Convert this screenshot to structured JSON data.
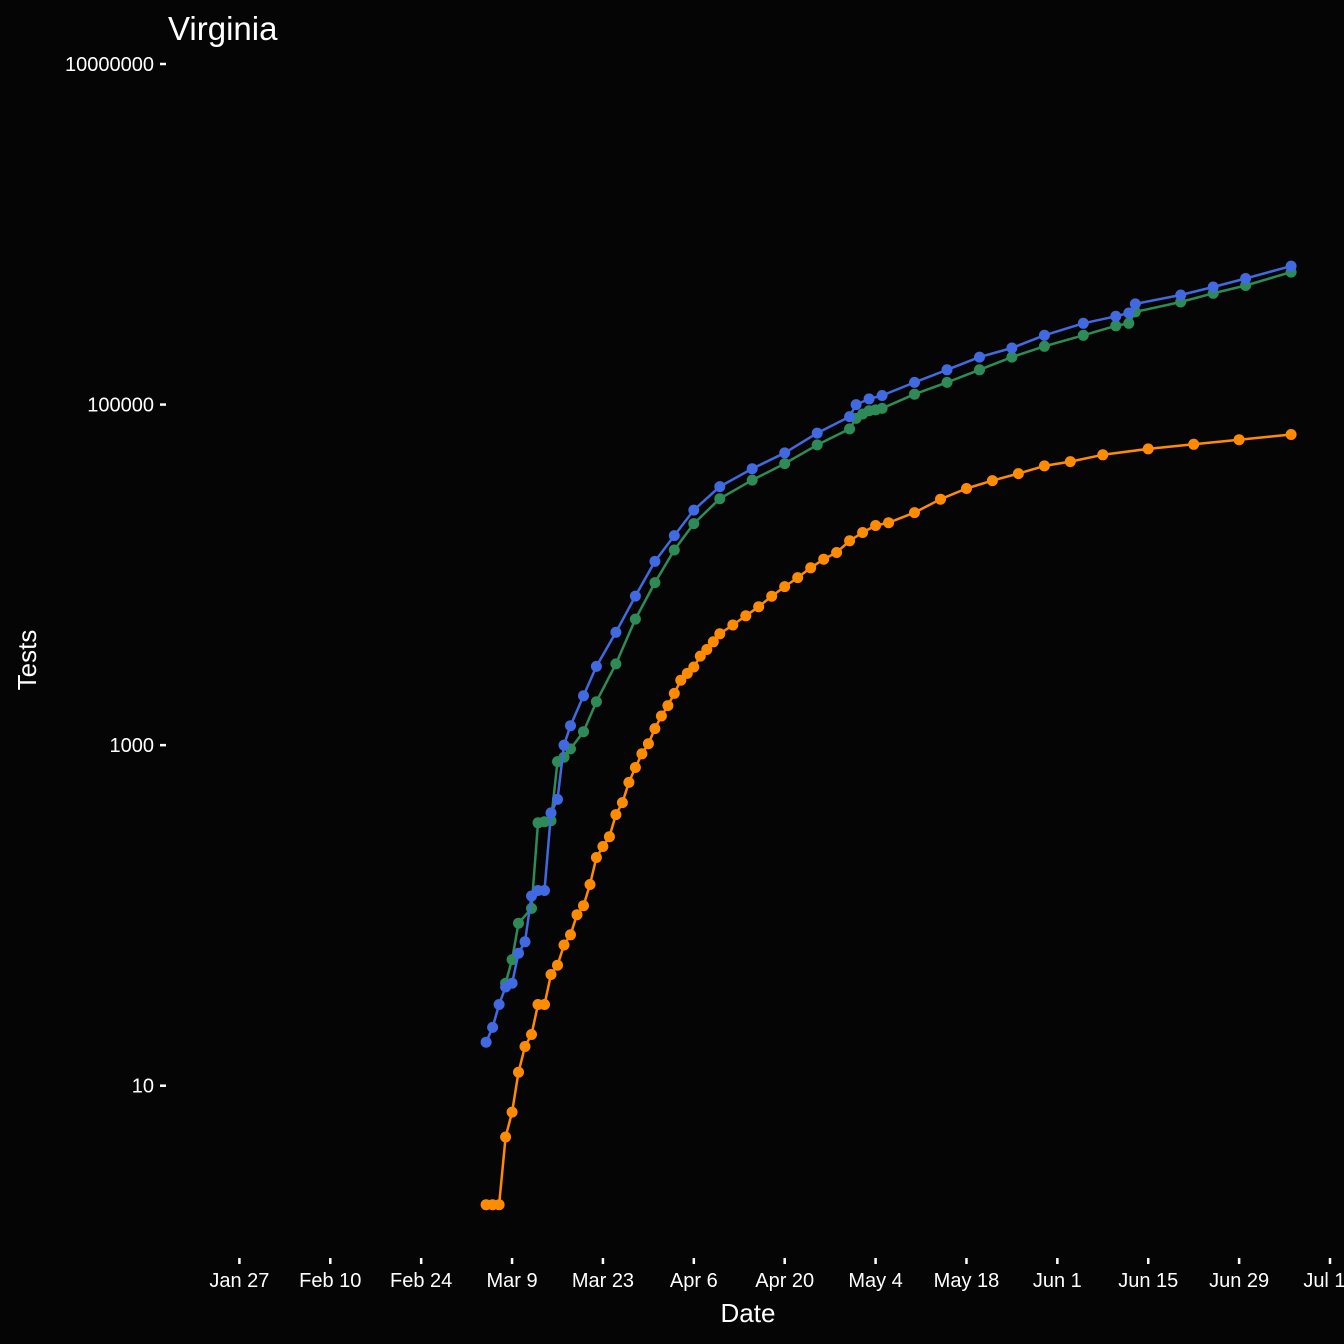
{
  "chart_data": {
    "type": "line",
    "title": "Virginia",
    "xlabel": "Date",
    "ylabel": "Tests",
    "y_scale": "log10",
    "ylim": [
      1,
      10000000
    ],
    "xlim": [
      "2020-01-16",
      "2020-07-13"
    ],
    "y_ticks": [
      {
        "value": 10,
        "label": "10"
      },
      {
        "value": 1000,
        "label": "1000"
      },
      {
        "value": 100000,
        "label": "100000"
      },
      {
        "value": 10000000,
        "label": "10000000"
      }
    ],
    "x_ticks": [
      {
        "date": "2020-01-27",
        "label": "Jan 27"
      },
      {
        "date": "2020-02-10",
        "label": "Feb 10"
      },
      {
        "date": "2020-02-24",
        "label": "Feb 24"
      },
      {
        "date": "2020-03-09",
        "label": "Mar  9"
      },
      {
        "date": "2020-03-23",
        "label": "Mar 23"
      },
      {
        "date": "2020-04-06",
        "label": "Apr  6"
      },
      {
        "date": "2020-04-20",
        "label": "Apr 20"
      },
      {
        "date": "2020-05-04",
        "label": "May  4"
      },
      {
        "date": "2020-05-18",
        "label": "May 18"
      },
      {
        "date": "2020-06-01",
        "label": "Jun  1"
      },
      {
        "date": "2020-06-15",
        "label": "Jun 15"
      },
      {
        "date": "2020-06-29",
        "label": "Jun 29"
      },
      {
        "date": "2020-07-13",
        "label": "Jul 13"
      }
    ],
    "grid": false,
    "legend": "none",
    "series": [
      {
        "color": "#2e8b57",
        "points": [
          [
            "2020-03-08",
            40
          ],
          [
            "2020-03-09",
            55
          ],
          [
            "2020-03-10",
            90
          ],
          [
            "2020-03-12",
            110
          ],
          [
            "2020-03-13",
            350
          ],
          [
            "2020-03-14",
            355
          ],
          [
            "2020-03-15",
            360
          ],
          [
            "2020-03-16",
            800
          ],
          [
            "2020-03-17",
            850
          ],
          [
            "2020-03-18",
            950
          ],
          [
            "2020-03-20",
            1200
          ],
          [
            "2020-03-22",
            1800
          ],
          [
            "2020-03-25",
            3000
          ],
          [
            "2020-03-28",
            5500
          ],
          [
            "2020-03-31",
            9000
          ],
          [
            "2020-04-03",
            14000
          ],
          [
            "2020-04-06",
            20000
          ],
          [
            "2020-04-10",
            28000
          ],
          [
            "2020-04-15",
            36000
          ],
          [
            "2020-04-20",
            45000
          ],
          [
            "2020-04-25",
            58000
          ],
          [
            "2020-04-30",
            72000
          ],
          [
            "2020-05-01",
            83000
          ],
          [
            "2020-05-02",
            88000
          ],
          [
            "2020-05-03",
            92000
          ],
          [
            "2020-05-04",
            93000
          ],
          [
            "2020-05-05",
            95000
          ],
          [
            "2020-05-10",
            115000
          ],
          [
            "2020-05-15",
            135000
          ],
          [
            "2020-05-20",
            160000
          ],
          [
            "2020-05-25",
            190000
          ],
          [
            "2020-05-30",
            220000
          ],
          [
            "2020-06-05",
            255000
          ],
          [
            "2020-06-10",
            290000
          ],
          [
            "2020-06-12",
            300000
          ],
          [
            "2020-06-13",
            350000
          ],
          [
            "2020-06-20",
            400000
          ],
          [
            "2020-06-25",
            450000
          ],
          [
            "2020-06-30",
            500000
          ],
          [
            "2020-07-07",
            600000
          ]
        ]
      },
      {
        "color": "#4169e1",
        "points": [
          [
            "2020-03-05",
            18
          ],
          [
            "2020-03-06",
            22
          ],
          [
            "2020-03-07",
            30
          ],
          [
            "2020-03-08",
            38
          ],
          [
            "2020-03-09",
            40
          ],
          [
            "2020-03-10",
            60
          ],
          [
            "2020-03-11",
            70
          ],
          [
            "2020-03-12",
            130
          ],
          [
            "2020-03-13",
            140
          ],
          [
            "2020-03-14",
            140
          ],
          [
            "2020-03-15",
            400
          ],
          [
            "2020-03-16",
            480
          ],
          [
            "2020-03-17",
            1000
          ],
          [
            "2020-03-18",
            1300
          ],
          [
            "2020-03-20",
            1950
          ],
          [
            "2020-03-22",
            2900
          ],
          [
            "2020-03-25",
            4600
          ],
          [
            "2020-03-28",
            7500
          ],
          [
            "2020-03-31",
            12000
          ],
          [
            "2020-04-03",
            17000
          ],
          [
            "2020-04-06",
            24000
          ],
          [
            "2020-04-10",
            33000
          ],
          [
            "2020-04-15",
            42000
          ],
          [
            "2020-04-20",
            52000
          ],
          [
            "2020-04-25",
            68000
          ],
          [
            "2020-04-30",
            85000
          ],
          [
            "2020-05-01",
            100000
          ],
          [
            "2020-05-03",
            108000
          ],
          [
            "2020-05-05",
            113000
          ],
          [
            "2020-05-10",
            135000
          ],
          [
            "2020-05-15",
            160000
          ],
          [
            "2020-05-20",
            190000
          ],
          [
            "2020-05-25",
            215000
          ],
          [
            "2020-05-30",
            255000
          ],
          [
            "2020-06-05",
            300000
          ],
          [
            "2020-06-10",
            330000
          ],
          [
            "2020-06-12",
            345000
          ],
          [
            "2020-06-13",
            390000
          ],
          [
            "2020-06-20",
            440000
          ],
          [
            "2020-06-25",
            490000
          ],
          [
            "2020-06-30",
            550000
          ],
          [
            "2020-07-07",
            650000
          ]
        ]
      },
      {
        "color": "#ff8c00",
        "points": [
          [
            "2020-03-05",
            2
          ],
          [
            "2020-03-06",
            2
          ],
          [
            "2020-03-07",
            2
          ],
          [
            "2020-03-08",
            5
          ],
          [
            "2020-03-09",
            7
          ],
          [
            "2020-03-10",
            12
          ],
          [
            "2020-03-11",
            17
          ],
          [
            "2020-03-12",
            20
          ],
          [
            "2020-03-13",
            30
          ],
          [
            "2020-03-14",
            30
          ],
          [
            "2020-03-15",
            45
          ],
          [
            "2020-03-16",
            51
          ],
          [
            "2020-03-17",
            67
          ],
          [
            "2020-03-18",
            77
          ],
          [
            "2020-03-19",
            101
          ],
          [
            "2020-03-20",
            114
          ],
          [
            "2020-03-21",
            152
          ],
          [
            "2020-03-22",
            219
          ],
          [
            "2020-03-23",
            254
          ],
          [
            "2020-03-24",
            290
          ],
          [
            "2020-03-25",
            391
          ],
          [
            "2020-03-26",
            460
          ],
          [
            "2020-03-27",
            604
          ],
          [
            "2020-03-28",
            739
          ],
          [
            "2020-03-29",
            890
          ],
          [
            "2020-03-30",
            1020
          ],
          [
            "2020-03-31",
            1250
          ],
          [
            "2020-04-01",
            1484
          ],
          [
            "2020-04-02",
            1706
          ],
          [
            "2020-04-03",
            2012
          ],
          [
            "2020-04-04",
            2407
          ],
          [
            "2020-04-05",
            2637
          ],
          [
            "2020-04-06",
            2878
          ],
          [
            "2020-04-07",
            3333
          ],
          [
            "2020-04-08",
            3645
          ],
          [
            "2020-04-09",
            4042
          ],
          [
            "2020-04-10",
            4509
          ],
          [
            "2020-04-12",
            5077
          ],
          [
            "2020-04-14",
            5747
          ],
          [
            "2020-04-16",
            6500
          ],
          [
            "2020-04-18",
            7491
          ],
          [
            "2020-04-20",
            8537
          ],
          [
            "2020-04-22",
            9630
          ],
          [
            "2020-04-24",
            10998
          ],
          [
            "2020-04-26",
            12366
          ],
          [
            "2020-04-28",
            13535
          ],
          [
            "2020-04-30",
            15846
          ],
          [
            "2020-05-02",
            17731
          ],
          [
            "2020-05-04",
            19492
          ],
          [
            "2020-05-06",
            20256
          ],
          [
            "2020-05-10",
            23196
          ],
          [
            "2020-05-14",
            27813
          ],
          [
            "2020-05-18",
            32145
          ],
          [
            "2020-05-22",
            35749
          ],
          [
            "2020-05-26",
            39342
          ],
          [
            "2020-05-30",
            43611
          ],
          [
            "2020-06-03",
            46239
          ],
          [
            "2020-06-08",
            50681
          ],
          [
            "2020-06-15",
            54886
          ],
          [
            "2020-06-22",
            58465
          ],
          [
            "2020-06-29",
            62189
          ],
          [
            "2020-07-07",
            66740
          ]
        ]
      }
    ]
  }
}
